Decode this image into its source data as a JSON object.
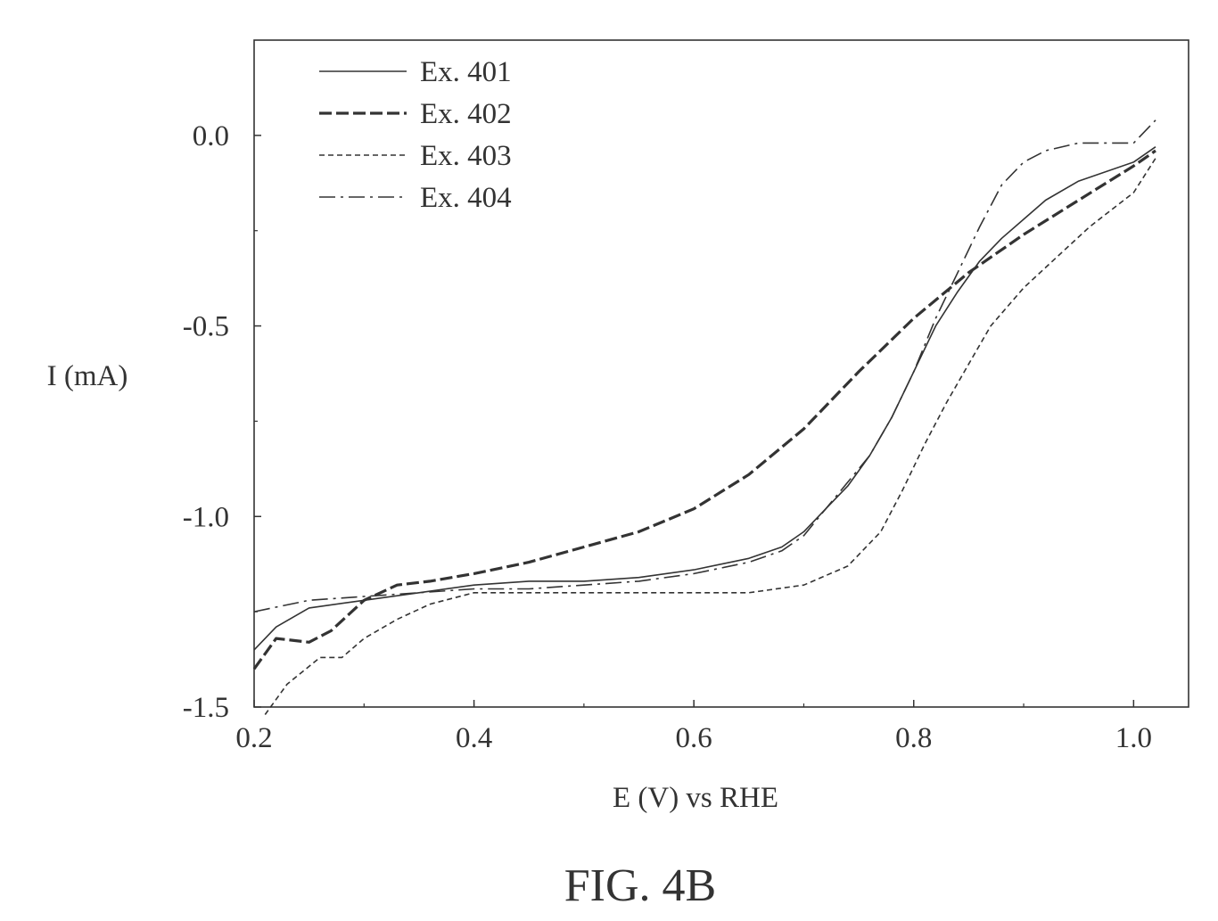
{
  "figure_label": "FIG. 4B",
  "chart_data": {
    "type": "line",
    "xlabel": "E (V) vs RHE",
    "ylabel": "I (mA)",
    "xlim": [
      0.2,
      1.05
    ],
    "ylim": [
      -1.5,
      0.25
    ],
    "xticks": [
      0.2,
      0.4,
      0.6,
      0.8,
      1.0
    ],
    "xtick_labels": [
      "0.2",
      "0.4",
      "0.6",
      "0.8",
      "1.0"
    ],
    "yticks": [
      0.0,
      -0.5,
      -1.0,
      -1.5
    ],
    "ytick_labels": [
      "0.0",
      "-0.5",
      "-1.0",
      "-1.5"
    ],
    "grid": false,
    "legend_position": "top-left",
    "series": [
      {
        "name": "Ex. 401",
        "style": "solid",
        "x": [
          0.2,
          0.22,
          0.25,
          0.3,
          0.35,
          0.4,
          0.45,
          0.5,
          0.55,
          0.6,
          0.65,
          0.68,
          0.7,
          0.72,
          0.74,
          0.76,
          0.78,
          0.8,
          0.82,
          0.84,
          0.86,
          0.88,
          0.9,
          0.92,
          0.95,
          1.0,
          1.02
        ],
        "y": [
          -1.35,
          -1.29,
          -1.24,
          -1.22,
          -1.2,
          -1.18,
          -1.17,
          -1.17,
          -1.16,
          -1.14,
          -1.11,
          -1.08,
          -1.04,
          -0.98,
          -0.92,
          -0.84,
          -0.74,
          -0.62,
          -0.5,
          -0.41,
          -0.33,
          -0.27,
          -0.22,
          -0.17,
          -0.12,
          -0.07,
          -0.03
        ]
      },
      {
        "name": "Ex. 402",
        "style": "long-dash",
        "x": [
          0.2,
          0.22,
          0.25,
          0.27,
          0.3,
          0.33,
          0.36,
          0.4,
          0.45,
          0.5,
          0.55,
          0.6,
          0.65,
          0.7,
          0.75,
          0.8,
          0.85,
          0.9,
          0.95,
          1.0,
          1.02
        ],
        "y": [
          -1.4,
          -1.32,
          -1.33,
          -1.3,
          -1.22,
          -1.18,
          -1.17,
          -1.15,
          -1.12,
          -1.08,
          -1.04,
          -0.98,
          -0.89,
          -0.77,
          -0.62,
          -0.48,
          -0.36,
          -0.26,
          -0.17,
          -0.08,
          -0.04
        ]
      },
      {
        "name": "Ex. 403",
        "style": "short-dash",
        "x": [
          0.21,
          0.23,
          0.26,
          0.28,
          0.3,
          0.33,
          0.36,
          0.4,
          0.45,
          0.5,
          0.55,
          0.6,
          0.65,
          0.7,
          0.74,
          0.77,
          0.79,
          0.81,
          0.83,
          0.85,
          0.87,
          0.9,
          0.93,
          0.96,
          1.0,
          1.02
        ],
        "y": [
          -1.52,
          -1.44,
          -1.37,
          -1.37,
          -1.32,
          -1.27,
          -1.23,
          -1.2,
          -1.2,
          -1.2,
          -1.2,
          -1.2,
          -1.2,
          -1.18,
          -1.13,
          -1.04,
          -0.93,
          -0.81,
          -0.7,
          -0.6,
          -0.5,
          -0.4,
          -0.32,
          -0.24,
          -0.15,
          -0.06
        ]
      },
      {
        "name": "Ex. 404",
        "style": "dash-dot",
        "x": [
          0.2,
          0.25,
          0.3,
          0.35,
          0.4,
          0.45,
          0.5,
          0.55,
          0.6,
          0.65,
          0.68,
          0.7,
          0.72,
          0.74,
          0.76,
          0.78,
          0.8,
          0.82,
          0.84,
          0.86,
          0.88,
          0.9,
          0.92,
          0.95,
          0.98,
          1.0,
          1.02
        ],
        "y": [
          -1.25,
          -1.22,
          -1.21,
          -1.2,
          -1.19,
          -1.19,
          -1.18,
          -1.17,
          -1.15,
          -1.12,
          -1.09,
          -1.05,
          -0.98,
          -0.91,
          -0.84,
          -0.74,
          -0.62,
          -0.48,
          -0.36,
          -0.24,
          -0.13,
          -0.07,
          -0.04,
          -0.02,
          -0.02,
          -0.02,
          0.04
        ]
      }
    ]
  }
}
